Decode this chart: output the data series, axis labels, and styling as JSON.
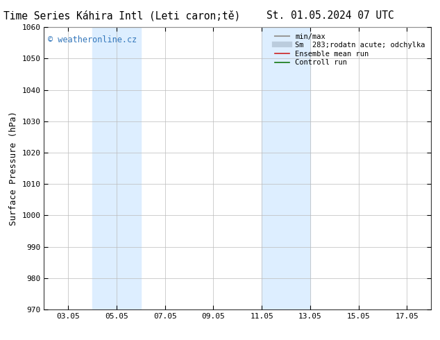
{
  "title_left": "ENS Time Series Káhira Intl (Leti caron;tě)",
  "title_right": "St. 01.05.2024 07 UTC",
  "ylabel": "Surface Pressure (hPa)",
  "ylim": [
    970,
    1060
  ],
  "yticks": [
    970,
    980,
    990,
    1000,
    1010,
    1020,
    1030,
    1040,
    1050,
    1060
  ],
  "xtick_labels": [
    "03.05",
    "05.05",
    "07.05",
    "09.05",
    "11.05",
    "13.05",
    "15.05",
    "17.05"
  ],
  "xtick_positions": [
    3,
    5,
    7,
    9,
    11,
    13,
    15,
    17
  ],
  "xlim": [
    2,
    18
  ],
  "shaded_regions": [
    {
      "xmin": 4.0,
      "xmax": 6.0,
      "color": "#ddeeff"
    },
    {
      "xmin": 11.0,
      "xmax": 13.0,
      "color": "#ddeeff"
    }
  ],
  "watermark_text": "© weatheronline.cz",
  "watermark_color": "#3377bb",
  "legend_entries": [
    {
      "label": "min/max",
      "color": "#999999",
      "lw": 1.5,
      "style": "solid"
    },
    {
      "label": "Sm  283;rodatn acute; odchylka",
      "color": "#bbccdd",
      "lw": 6,
      "style": "solid"
    },
    {
      "label": "Ensemble mean run",
      "color": "#cc2222",
      "lw": 1.2,
      "style": "solid"
    },
    {
      "label": "Controll run",
      "color": "#117711",
      "lw": 1.2,
      "style": "solid"
    }
  ],
  "bg_color": "#ffffff",
  "plot_bg_color": "#ffffff",
  "grid_color": "#bbbbbb",
  "title_fontsize": 10.5,
  "axis_label_fontsize": 9,
  "tick_fontsize": 8,
  "legend_fontsize": 7.5,
  "watermark_fontsize": 8.5
}
